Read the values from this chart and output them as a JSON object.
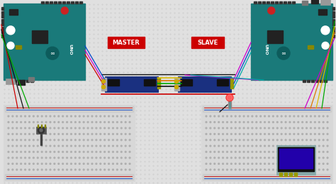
{
  "background_color": "#e0e0e0",
  "master_label": "MASTER",
  "slave_label": "SLAVE",
  "master_label_bg": "#cc0000",
  "slave_label_bg": "#cc0000",
  "label_text_color": "#ffffff",
  "arduino_teal": "#1a7a7a",
  "arduino_dark_teal": "#0d5c5c",
  "arduino_board_edge": "#333333",
  "breadboard_bg": "#d8d8d8",
  "breadboard_hole": "#b0b0b0",
  "breadboard_rail_red": "#ff4444",
  "breadboard_rail_blue": "#4444ff",
  "rs485_blue": "#1a3080",
  "rs485_chip": "#111111",
  "rs485_screw_gold": "#ccaa00",
  "wire_red": "#cc0000",
  "wire_black": "#111111",
  "wire_green": "#00aa00",
  "wire_blue": "#0044cc",
  "wire_yellow": "#ddbb00",
  "wire_magenta": "#cc00cc",
  "wire_cyan": "#00aaaa",
  "wire_orange": "#dd7700",
  "wire_gray": "#888888",
  "led_red_color": "#ff2222",
  "led_body": "#cc1111",
  "oled_border": "#88aaaa",
  "oled_screen": "#2200aa",
  "pot_body": "#555555",
  "chip_color": "#222222",
  "connector_dark": "#333333",
  "grid_dot": "#c8c8c8",
  "white": "#ffffff",
  "usb_gray": "#999999",
  "regulator_gray": "#777777"
}
